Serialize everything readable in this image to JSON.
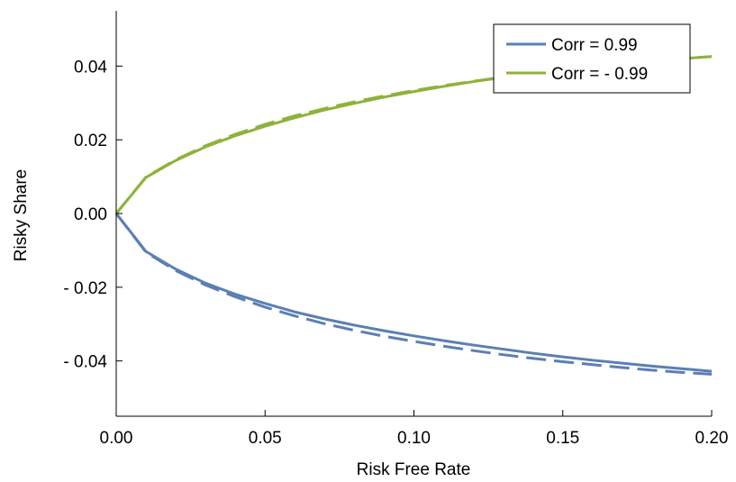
{
  "chart_data": {
    "type": "line",
    "title": "",
    "xlabel": "Risk Free Rate",
    "ylabel": "Risky Share",
    "xlim": [
      0.0,
      0.2
    ],
    "ylim": [
      -0.055,
      0.055
    ],
    "xticks": [
      0.0,
      0.05,
      0.1,
      0.15,
      0.2
    ],
    "xtick_labels": [
      "0.00",
      "0.05",
      "0.10",
      "0.15",
      "0.20"
    ],
    "yticks": [
      0.04,
      0.02,
      0.0,
      -0.02,
      -0.04
    ],
    "ytick_labels": [
      "0.04",
      "0.02",
      "0.00",
      "- 0.02",
      "- 0.04"
    ],
    "grid": false,
    "legend_position": "top-right",
    "x": [
      0.0,
      0.01,
      0.02,
      0.03,
      0.04,
      0.05,
      0.06,
      0.07,
      0.08,
      0.09,
      0.1,
      0.11,
      0.12,
      0.13,
      0.14,
      0.15,
      0.16,
      0.17,
      0.18,
      0.19,
      0.2
    ],
    "series": [
      {
        "name": "Corr = 0.99",
        "color": "#5b7fb5",
        "style": "solid",
        "values": [
          0.0,
          -0.0103,
          -0.0151,
          -0.0189,
          -0.0219,
          -0.0244,
          -0.0267,
          -0.0286,
          -0.0303,
          -0.0318,
          -0.0332,
          -0.0345,
          -0.0357,
          -0.0368,
          -0.0379,
          -0.0389,
          -0.0398,
          -0.0406,
          -0.0414,
          -0.0421,
          -0.0428
        ]
      },
      {
        "name": "",
        "color": "#5b7fb5",
        "style": "dashed",
        "values": [
          0.0,
          -0.0105,
          -0.0155,
          -0.0194,
          -0.0226,
          -0.0254,
          -0.0278,
          -0.0299,
          -0.0317,
          -0.0333,
          -0.0347,
          -0.036,
          -0.0372,
          -0.0383,
          -0.0393,
          -0.0402,
          -0.041,
          -0.0418,
          -0.0425,
          -0.0431,
          -0.0436
        ]
      },
      {
        "name": "Corr = - 0.99",
        "color": "#8db33a",
        "style": "solid",
        "values": [
          0.0,
          0.0098,
          0.0144,
          0.0181,
          0.0211,
          0.0237,
          0.026,
          0.0281,
          0.0299,
          0.0316,
          0.0331,
          0.0345,
          0.0358,
          0.0369,
          0.038,
          0.0389,
          0.0398,
          0.0406,
          0.0413,
          0.042,
          0.0426
        ]
      },
      {
        "name": "",
        "color": "#8db33a",
        "style": "dashed",
        "values": [
          0.0,
          0.0099,
          0.0146,
          0.0184,
          0.0215,
          0.0242,
          0.0265,
          0.0285,
          0.0303,
          0.0319,
          0.0334,
          0.0347,
          0.0359,
          0.037,
          0.038,
          0.0389,
          0.0398,
          0.0406,
          0.0413,
          0.042,
          0.0426
        ]
      }
    ]
  }
}
